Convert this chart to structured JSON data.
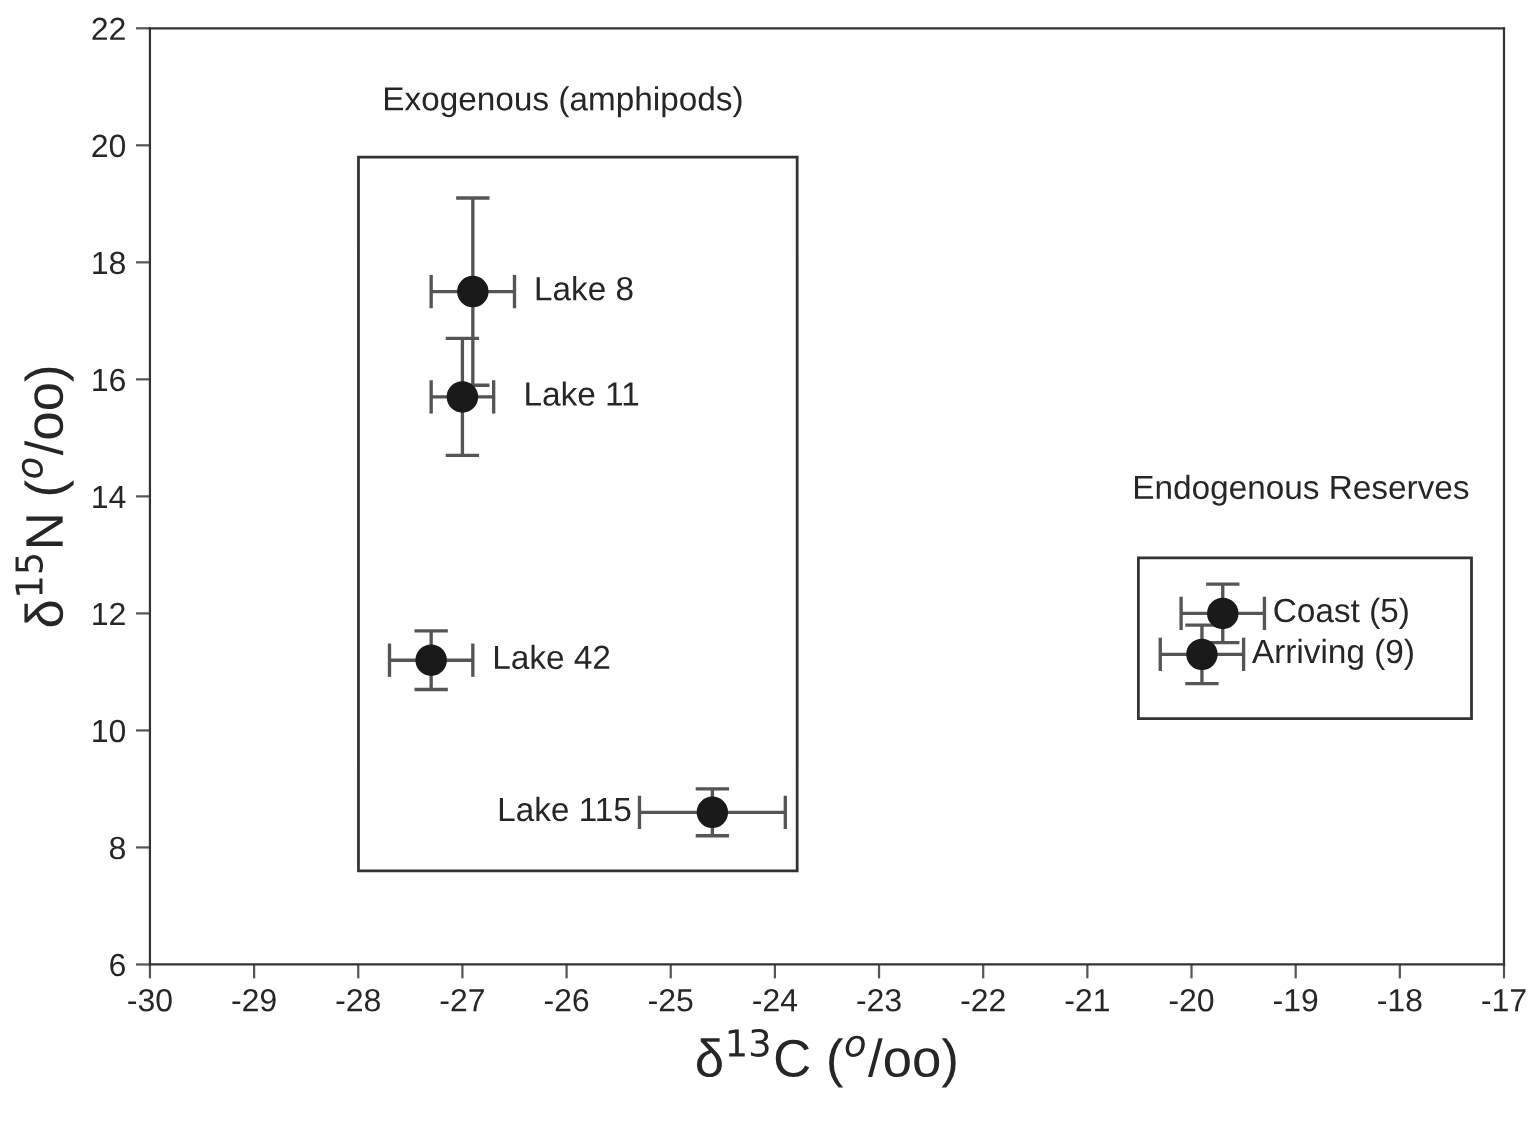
{
  "chart_data": {
    "type": "scatter",
    "xlabel": "δ$^{13}$C ($^{o}$/oo)",
    "ylabel": "δ$^{15}$N ($^{o}$/oo)",
    "x": [
      -26.9,
      -27.0,
      -27.3,
      -24.6,
      -19.7,
      -19.9
    ],
    "series": [
      {
        "color": "#1a1a1a",
        "values": [
          17.5,
          15.7,
          11.2,
          8.6,
          12.0,
          11.3
        ],
        "errors": [
          1.6,
          1.0,
          0.5,
          0.4,
          0.5,
          0.5
        ],
        "xerrors": [
          0.4,
          0.3,
          0.4,
          0.7,
          0.4,
          0.4
        ]
      }
    ],
    "marker": "circle",
    "xlim": [
      -30,
      -17
    ],
    "xticks": [
      -30,
      -29,
      -28,
      -27,
      -26,
      -25,
      -24,
      -23,
      -22,
      -21,
      -20,
      -19,
      -18,
      -17
    ],
    "ylim": [
      6,
      22
    ],
    "yticks": [
      6,
      8,
      10,
      12,
      14,
      16,
      18,
      20,
      22
    ],
    "grid": false,
    "legend": false,
    "annotations": [
      "Exogenous (amphipods)",
      "Endogenous Reserves",
      {
        "text": "Lake 8",
        "x": -26.9,
        "y": 17.5
      },
      {
        "text": "Lake 11",
        "x": -27.0,
        "y": 15.7
      },
      {
        "text": "Lake 42",
        "x": -27.3,
        "y": 11.2
      },
      {
        "text": "Lake 115",
        "x": -24.6,
        "y": 8.6
      },
      {
        "text": "Coast (5)",
        "x": -19.7,
        "y": 12.0
      },
      {
        "text": "Arriving (9)",
        "x": -19.9,
        "y": 11.3
      }
    ]
  }
}
